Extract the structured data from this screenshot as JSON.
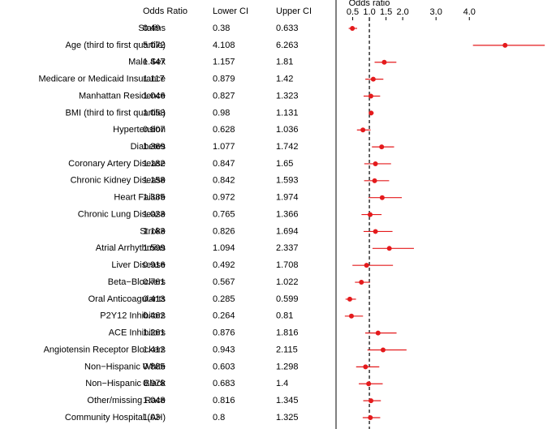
{
  "chart_data": {
    "type": "forest",
    "columns": [
      "Odds Ratio",
      "Lower CI",
      "Upper CI"
    ],
    "categories": [
      "Statins",
      "Age (third to first quartile)",
      "Male Sex",
      "Medicare or Medicaid Insurance",
      "Manhattan Residence",
      "BMI (third to first quartile)",
      "Hypertension",
      "Diabetes",
      "Coronary Artery Disease",
      "Chronic Kidney Disease",
      "Heart Failure",
      "Chronic Lung Disease",
      "Stroke",
      "Atrial Arrhythmias",
      "Liver Disease",
      "Beta−Blockers",
      "Oral Anticoagulants",
      "P2Y12 Inhibitors",
      "ACE Inhibitors",
      "Angiotensin Receptor Blockers",
      "Non−Hispanic White",
      "Non−Hispanic Black",
      "Other/missing Race",
      "Community Hospital (AH)"
    ],
    "values": [
      0.49,
      5.072,
      1.447,
      1.117,
      1.046,
      1.053,
      0.807,
      1.369,
      1.182,
      1.158,
      1.385,
      1.023,
      1.183,
      1.599,
      0.916,
      0.761,
      0.413,
      0.462,
      1.261,
      1.412,
      0.885,
      0.978,
      1.048,
      1.03
    ],
    "lower": [
      0.38,
      4.108,
      1.157,
      0.879,
      0.827,
      0.98,
      0.628,
      1.077,
      0.847,
      0.842,
      0.972,
      0.765,
      0.826,
      1.094,
      0.492,
      0.567,
      0.285,
      0.264,
      0.876,
      0.943,
      0.603,
      0.683,
      0.816,
      0.8
    ],
    "upper": [
      0.633,
      6.263,
      1.81,
      1.42,
      1.323,
      1.131,
      1.036,
      1.742,
      1.65,
      1.593,
      1.974,
      1.366,
      1.694,
      2.337,
      1.708,
      1.022,
      0.599,
      0.81,
      1.816,
      2.115,
      1.298,
      1.4,
      1.345,
      1.325
    ],
    "xlabel": "Odds ratio",
    "xlim": [
      0,
      6.6
    ],
    "xticks": [
      0.5,
      {
        "value": 1,
        "label": "1.0"
      },
      1.5,
      {
        "value": 2,
        "label": "2.0"
      },
      {
        "value": 3,
        "label": "3.0"
      },
      {
        "value": 4,
        "label": "4.0"
      }
    ],
    "reference_line": 1,
    "color": "#e41a1c"
  }
}
